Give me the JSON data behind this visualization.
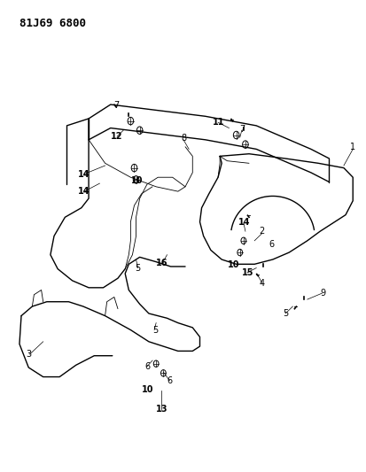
{
  "title": "81J69 6800",
  "background_color": "#ffffff",
  "line_color": "#000000",
  "text_color": "#000000",
  "fig_width": 4.14,
  "fig_height": 5.33,
  "dpi": 100,
  "fontsize_title": 9,
  "fontsize_label": 7
}
